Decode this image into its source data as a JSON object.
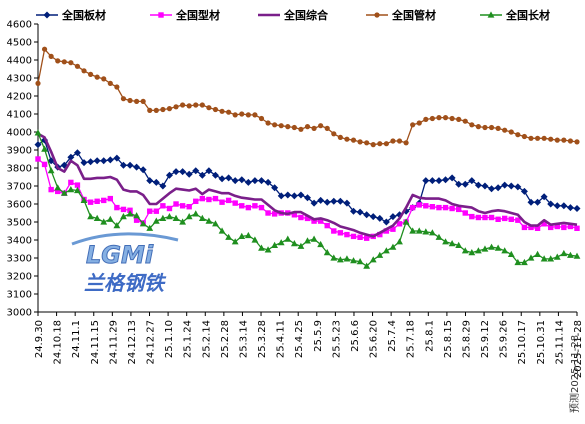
{
  "chart_data": {
    "type": "line",
    "title": "",
    "xlabel": "",
    "ylabel": "",
    "ylim": [
      3000,
      4600
    ],
    "yticks": [
      3000,
      3100,
      3200,
      3300,
      3400,
      3500,
      3600,
      3700,
      3800,
      3900,
      4000,
      4100,
      4200,
      4300,
      4400,
      4500,
      4600
    ],
    "grid": false,
    "legend_position": "top",
    "tick_labels": [
      "24.9.30",
      "24.10.18",
      "24.11.1",
      "24.11.15",
      "24.11.29",
      "24.12.13",
      "24.12.27",
      "25.1.10",
      "25.1.24",
      "25.2.14",
      "25.2.28",
      "25.3.14",
      "25.3.28",
      "25.4.11",
      "25.4.25",
      "25.5.9",
      "25.5.23",
      "25.6.6",
      "25.6.20",
      "25.7.4",
      "25.7.18",
      "25.8.1",
      "25.8.15",
      "25.8.29",
      "25.9.12",
      "25.9.26",
      "25.10.17",
      "25.10.31",
      "25.11.14",
      "2025-11-28"
    ],
    "series": [
      {
        "name": "全国板材",
        "color": "#001f7a",
        "marker": "diamond",
        "values": [
          3930,
          3955,
          3840,
          3805,
          3815,
          3860,
          3885,
          3830,
          3835,
          3840,
          3840,
          3845,
          3855,
          3815,
          3815,
          3805,
          3790,
          3730,
          3720,
          3700,
          3760,
          3780,
          3780,
          3765,
          3785,
          3760,
          3785,
          3760,
          3740,
          3745,
          3730,
          3735,
          3720,
          3730,
          3730,
          3720,
          3690,
          3645,
          3650,
          3645,
          3650,
          3635,
          3605,
          3620,
          3610,
          3615,
          3615,
          3605,
          3560,
          3555,
          3540,
          3530,
          3520,
          3500,
          3530,
          3540,
          3560,
          3580,
          3605,
          3730,
          3730,
          3730,
          3735,
          3745,
          3710,
          3710,
          3730,
          3705,
          3700,
          3685,
          3690,
          3705,
          3700,
          3695,
          3670,
          3610,
          3610,
          3640,
          3600,
          3590,
          3590,
          3580,
          3575
        ]
      },
      {
        "name": "全国型材",
        "color": "#ff00ff",
        "marker": "square",
        "values": [
          3850,
          3820,
          3680,
          3670,
          3660,
          3720,
          3705,
          3625,
          3610,
          3615,
          3620,
          3630,
          3580,
          3570,
          3565,
          3510,
          3495,
          3560,
          3560,
          3590,
          3575,
          3600,
          3590,
          3585,
          3615,
          3630,
          3625,
          3630,
          3610,
          3620,
          3605,
          3590,
          3580,
          3590,
          3580,
          3550,
          3545,
          3550,
          3550,
          3540,
          3525,
          3520,
          3505,
          3505,
          3480,
          3450,
          3440,
          3430,
          3420,
          3415,
          3410,
          3420,
          3430,
          3450,
          3460,
          3490,
          3500,
          3580,
          3595,
          3590,
          3585,
          3580,
          3580,
          3575,
          3570,
          3550,
          3530,
          3525,
          3525,
          3525,
          3515,
          3520,
          3515,
          3510,
          3470,
          3470,
          3465,
          3490,
          3470,
          3475,
          3470,
          3475,
          3465
        ]
      },
      {
        "name": "全国综合",
        "color": "#7a1f8a",
        "marker": "none",
        "values": [
          3990,
          3970,
          3890,
          3800,
          3780,
          3840,
          3815,
          3740,
          3740,
          3745,
          3745,
          3750,
          3735,
          3680,
          3670,
          3670,
          3650,
          3600,
          3600,
          3630,
          3660,
          3685,
          3680,
          3675,
          3685,
          3655,
          3680,
          3670,
          3660,
          3660,
          3645,
          3635,
          3630,
          3625,
          3625,
          3595,
          3565,
          3550,
          3545,
          3555,
          3555,
          3535,
          3515,
          3520,
          3510,
          3495,
          3475,
          3465,
          3455,
          3440,
          3430,
          3420,
          3440,
          3460,
          3480,
          3520,
          3580,
          3650,
          3635,
          3630,
          3630,
          3630,
          3620,
          3600,
          3590,
          3585,
          3580,
          3560,
          3550,
          3560,
          3565,
          3560,
          3550,
          3540,
          3500,
          3480,
          3480,
          3510,
          3485,
          3490,
          3495,
          3490,
          3485
        ]
      },
      {
        "name": "全国管材",
        "color": "#a0501a",
        "marker": "circle",
        "values": [
          4270,
          4460,
          4420,
          4395,
          4390,
          4385,
          4365,
          4340,
          4320,
          4305,
          4295,
          4270,
          4250,
          4185,
          4175,
          4170,
          4170,
          4120,
          4120,
          4125,
          4130,
          4140,
          4150,
          4145,
          4150,
          4150,
          4135,
          4125,
          4115,
          4110,
          4095,
          4100,
          4095,
          4095,
          4075,
          4050,
          4040,
          4035,
          4030,
          4025,
          4015,
          4030,
          4020,
          4035,
          4020,
          3990,
          3970,
          3960,
          3955,
          3945,
          3940,
          3930,
          3935,
          3935,
          3950,
          3950,
          3940,
          4040,
          4050,
          4070,
          4075,
          4080,
          4080,
          4075,
          4070,
          4060,
          4040,
          4030,
          4025,
          4025,
          4020,
          4010,
          4000,
          3985,
          3975,
          3965,
          3965,
          3965,
          3960,
          3955,
          3955,
          3950,
          3945
        ]
      },
      {
        "name": "全国长材",
        "color": "#1f8f1f",
        "marker": "triangle",
        "values": [
          3995,
          3905,
          3785,
          3690,
          3660,
          3680,
          3675,
          3620,
          3530,
          3520,
          3500,
          3515,
          3480,
          3530,
          3545,
          3535,
          3490,
          3465,
          3505,
          3520,
          3530,
          3520,
          3500,
          3530,
          3545,
          3520,
          3505,
          3490,
          3450,
          3415,
          3390,
          3420,
          3425,
          3400,
          3355,
          3345,
          3370,
          3385,
          3405,
          3380,
          3365,
          3395,
          3405,
          3375,
          3330,
          3300,
          3290,
          3295,
          3285,
          3280,
          3255,
          3290,
          3315,
          3340,
          3360,
          3390,
          3500,
          3450,
          3450,
          3445,
          3440,
          3415,
          3390,
          3380,
          3370,
          3340,
          3330,
          3340,
          3350,
          3360,
          3355,
          3340,
          3320,
          3275,
          3275,
          3300,
          3320,
          3295,
          3295,
          3305,
          3325,
          3315,
          3310
        ]
      }
    ]
  },
  "watermark": {
    "logo_text": "LGMi",
    "name": "兰格钢铁"
  },
  "source_note": "预测2025-11-28"
}
